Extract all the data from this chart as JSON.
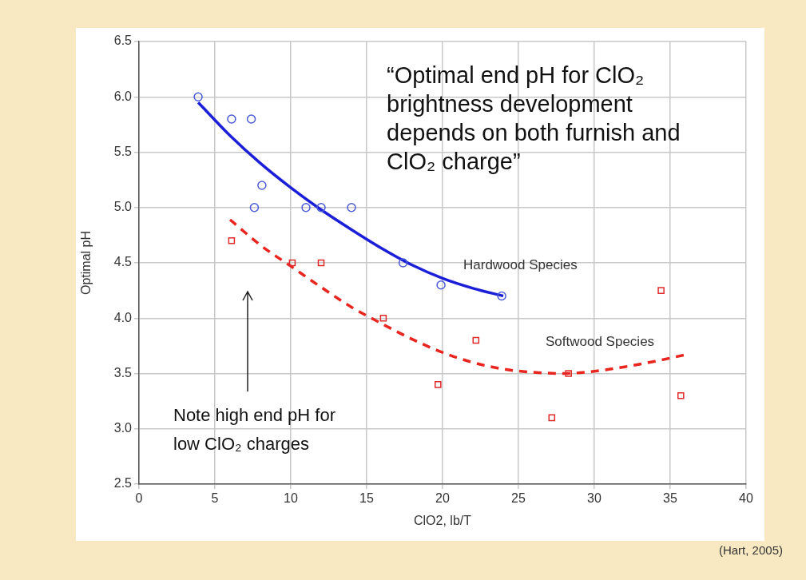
{
  "chart_data": {
    "type": "scatter",
    "xlabel": "ClO2, lb/T",
    "ylabel": "Optimal pH",
    "xlim": [
      0,
      40
    ],
    "xticks": [
      0,
      5,
      10,
      15,
      20,
      25,
      30,
      35,
      40
    ],
    "ylim": [
      2.5,
      6.5
    ],
    "yticks": [
      2.5,
      {
        "value": 3,
        "label": "3.0"
      },
      3.5,
      {
        "value": 4,
        "label": "4.0"
      },
      4.5,
      {
        "value": 5,
        "label": "5.0"
      },
      5.5,
      {
        "value": 6,
        "label": "6.0"
      },
      6.5
    ],
    "grid": true,
    "legend": false,
    "series": [
      {
        "marker": "circle",
        "color": "#4b5bd8",
        "x": [
          3.9,
          6.1,
          7.4,
          8.1,
          7.6,
          11.0,
          12.0,
          14.0,
          17.4,
          19.9,
          23.9
        ],
        "values": [
          6.0,
          5.8,
          5.8,
          5.2,
          5.0,
          5.0,
          5.0,
          5.0,
          4.5,
          4.3,
          4.2
        ]
      },
      {
        "marker": "square",
        "color": "#e02a2a",
        "x": [
          6.1,
          10.1,
          12.0,
          16.1,
          22.2,
          19.7,
          27.2,
          28.3,
          34.4,
          35.7
        ],
        "values": [
          4.7,
          4.5,
          4.5,
          4.0,
          3.8,
          3.4,
          3.1,
          3.5,
          4.25,
          3.3
        ]
      },
      {
        "type": "line",
        "name": "Hardwood Species",
        "line_style": "solid",
        "marker": "none",
        "color": "#1c1fd8",
        "x": [
          3.9,
          6,
          8,
          10,
          12,
          14,
          16,
          18,
          20,
          22,
          24
        ],
        "values": [
          5.95,
          5.65,
          5.4,
          5.18,
          4.98,
          4.8,
          4.63,
          4.48,
          4.36,
          4.27,
          4.2
        ]
      },
      {
        "type": "line",
        "name": "Softwood Species",
        "line_style": "dashed",
        "marker": "none",
        "color": "#e8261f",
        "x": [
          6,
          8,
          10,
          12,
          14,
          16,
          18,
          20,
          22,
          24,
          26,
          28,
          30,
          32,
          34,
          36
        ],
        "values": [
          4.89,
          4.66,
          4.47,
          4.28,
          4.1,
          3.95,
          3.81,
          3.69,
          3.6,
          3.54,
          3.51,
          3.5,
          3.52,
          3.56,
          3.61,
          3.67
        ]
      }
    ],
    "annotations": [
      "“Optimal end pH for ClO₂ brightness development depends on both furnish and ClO₂ charge”",
      "Note high end pH for low ClO₂ charges",
      "(Hart, 2005)"
    ]
  }
}
